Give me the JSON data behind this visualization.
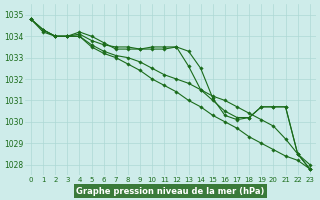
{
  "xlabel": "Graphe pression niveau de la mer (hPa)",
  "hours": [
    0,
    1,
    2,
    3,
    4,
    5,
    6,
    7,
    8,
    9,
    10,
    11,
    12,
    13,
    14,
    15,
    16,
    17,
    18,
    19,
    20,
    21,
    22,
    23
  ],
  "series": [
    [
      1034.8,
      1034.3,
      1034.0,
      1034.0,
      1034.1,
      1033.8,
      1033.6,
      1033.5,
      1033.5,
      1033.4,
      1033.5,
      1033.5,
      1033.5,
      1033.3,
      1032.5,
      1031.1,
      1030.3,
      1030.1,
      1030.2,
      1030.7,
      1030.7,
      1030.7,
      1028.5,
      1027.8
    ],
    [
      1034.8,
      1034.3,
      1034.0,
      1034.0,
      1034.2,
      1034.0,
      1033.7,
      1033.4,
      1033.4,
      1033.4,
      1033.4,
      1033.4,
      1033.5,
      1032.6,
      1031.5,
      1031.0,
      1030.5,
      1030.2,
      1030.2,
      1030.7,
      1030.7,
      1030.7,
      1028.5,
      1027.8
    ],
    [
      1034.8,
      1034.2,
      1034.0,
      1034.0,
      1034.0,
      1033.6,
      1033.3,
      1033.1,
      1033.0,
      1032.8,
      1032.5,
      1032.2,
      1032.0,
      1031.8,
      1031.5,
      1031.2,
      1031.0,
      1030.7,
      1030.4,
      1030.1,
      1029.8,
      1029.2,
      1028.5,
      1028.0
    ],
    [
      1034.8,
      1034.3,
      1034.0,
      1034.0,
      1034.0,
      1033.5,
      1033.2,
      1033.0,
      1032.7,
      1032.4,
      1032.0,
      1031.7,
      1031.4,
      1031.0,
      1030.7,
      1030.3,
      1030.0,
      1029.7,
      1029.3,
      1029.0,
      1028.7,
      1028.4,
      1028.2,
      1027.8
    ]
  ],
  "line_color": "#1a6b1a",
  "marker": "D",
  "marker_size": 1.8,
  "bg_color": "#ceecea",
  "grid_color": "#aed8d5",
  "xlabel_bg_color": "#3a7a3a",
  "xlabel_text_color": "#ffffff",
  "tick_label_color": "#1a6b1a",
  "ylim": [
    1027.5,
    1035.5
  ],
  "yticks": [
    1028,
    1029,
    1030,
    1031,
    1032,
    1033,
    1034,
    1035
  ],
  "xticks": [
    0,
    1,
    2,
    3,
    4,
    5,
    6,
    7,
    8,
    9,
    10,
    11,
    12,
    13,
    14,
    15,
    16,
    17,
    18,
    19,
    20,
    21,
    22,
    23
  ],
  "line_width": 0.8,
  "tick_fontsize": 5.0,
  "ytick_fontsize": 5.5
}
